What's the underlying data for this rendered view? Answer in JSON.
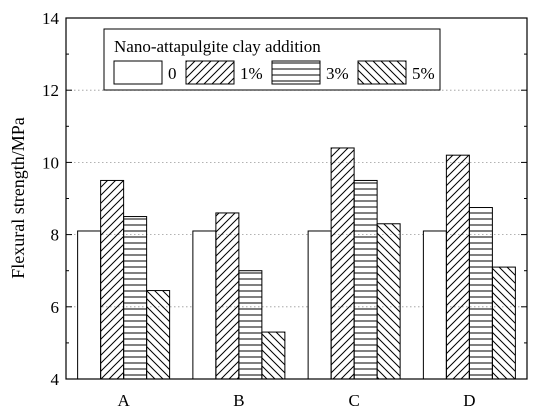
{
  "chart_data": {
    "type": "bar",
    "title": "",
    "xlabel": "",
    "ylabel": "Flexural strength/MPa",
    "ylim": [
      4,
      14
    ],
    "yticks": [
      4,
      6,
      8,
      10,
      12,
      14
    ],
    "grid": "horizontal-dotted",
    "categories": [
      "A",
      "B",
      "C",
      "D"
    ],
    "legend": {
      "title": "Nano-attapulgite clay addition",
      "placement": "top-left"
    },
    "series": [
      {
        "name": "0",
        "pattern": "none",
        "values": [
          8.1,
          8.1,
          8.1,
          8.1
        ]
      },
      {
        "name": "1%",
        "pattern": "diagonal-up",
        "values": [
          9.5,
          8.6,
          10.4,
          10.2
        ]
      },
      {
        "name": "3%",
        "pattern": "horizontal",
        "values": [
          8.5,
          7.0,
          9.5,
          8.75
        ]
      },
      {
        "name": "5%",
        "pattern": "diagonal-down",
        "values": [
          6.45,
          5.3,
          8.3,
          7.1
        ]
      }
    ]
  }
}
